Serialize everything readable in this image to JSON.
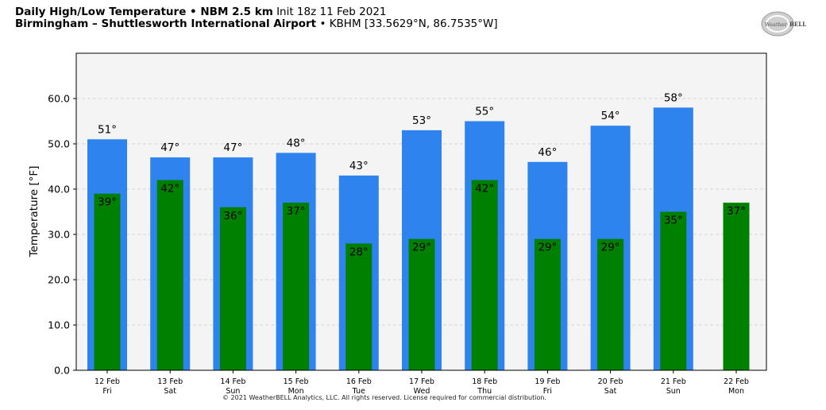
{
  "header": {
    "title_bold": "Daily High/Low Temperature • NBM 2.5 km",
    "title_rest": "Init 18z 11 Feb 2021",
    "location_bold": "Birmingham – Shuttlesworth International Airport",
    "location_rest": "• KBHM [33.5629°N, 86.7535°W]"
  },
  "logo": {
    "text_left": "Weather",
    "text_right": "BELL"
  },
  "footer": {
    "copyright": "© 2021 WeatherBELL Analytics, LLC. All rights reserved. License required for commercial distribution."
  },
  "colors": {
    "high": "#2e83ee",
    "low": "#008000",
    "plot_bg": "#f4f4f4"
  },
  "chart_data": {
    "type": "bar",
    "ylabel": "Temperature [°F]",
    "ylim": [
      0,
      70
    ],
    "yticks": [
      "0.0",
      "10.0",
      "20.0",
      "30.0",
      "40.0",
      "50.0",
      "60.0"
    ],
    "ytick_values": [
      0,
      10,
      20,
      30,
      40,
      50,
      60
    ],
    "grid": true,
    "categories": [
      {
        "date": "12 Feb",
        "day": "Fri"
      },
      {
        "date": "13 Feb",
        "day": "Sat"
      },
      {
        "date": "14 Feb",
        "day": "Sun"
      },
      {
        "date": "15 Feb",
        "day": "Mon"
      },
      {
        "date": "16 Feb",
        "day": "Tue"
      },
      {
        "date": "17 Feb",
        "day": "Wed"
      },
      {
        "date": "18 Feb",
        "day": "Thu"
      },
      {
        "date": "19 Feb",
        "day": "Fri"
      },
      {
        "date": "20 Feb",
        "day": "Sat"
      },
      {
        "date": "21 Feb",
        "day": "Sun"
      },
      {
        "date": "22 Feb",
        "day": "Mon"
      }
    ],
    "series": [
      {
        "key": "high",
        "values": [
          51,
          47,
          47,
          48,
          43,
          53,
          55,
          46,
          54,
          58,
          null
        ],
        "labels": [
          "51°",
          "47°",
          "47°",
          "48°",
          "43°",
          "53°",
          "55°",
          "46°",
          "54°",
          "58°",
          ""
        ]
      },
      {
        "key": "low",
        "values": [
          39,
          42,
          36,
          37,
          28,
          29,
          42,
          29,
          29,
          35,
          37
        ],
        "labels": [
          "39°",
          "42°",
          "36°",
          "37°",
          "28°",
          "29°",
          "42°",
          "29°",
          "29°",
          "35°",
          "37°"
        ]
      }
    ]
  }
}
